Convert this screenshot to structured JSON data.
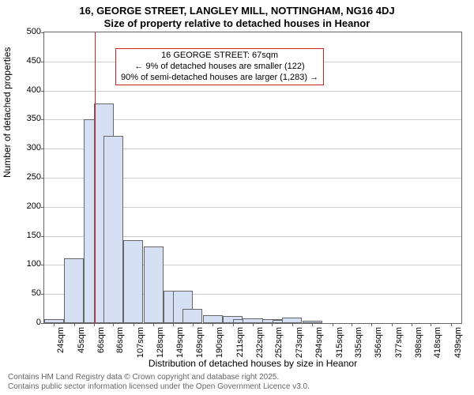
{
  "chart": {
    "type": "histogram",
    "title_main": "16, GEORGE STREET, LANGLEY MILL, NOTTINGHAM, NG16 4DJ",
    "title_sub": "Size of property relative to detached houses in Heanor",
    "title_fontsize": 13,
    "xlabel": "Distribution of detached houses by size in Heanor",
    "ylabel": "Number of detached properties",
    "label_fontsize": 12,
    "background_color": "#ffffff",
    "plot_border_color": "#666666",
    "grid_color": "#cccccc",
    "bar_fill": "#d5e0f5",
    "bar_border": "#666666",
    "marker_color": "#d22020",
    "ylim": [
      0,
      500
    ],
    "ytick_step": 50,
    "yticks": [
      0,
      50,
      100,
      150,
      200,
      250,
      300,
      350,
      400,
      450,
      500
    ],
    "xticks": [
      "24sqm",
      "45sqm",
      "66sqm",
      "86sqm",
      "107sqm",
      "128sqm",
      "149sqm",
      "169sqm",
      "190sqm",
      "211sqm",
      "232sqm",
      "252sqm",
      "273sqm",
      "294sqm",
      "315sqm",
      "335sqm",
      "356sqm",
      "377sqm",
      "398sqm",
      "418sqm",
      "439sqm"
    ],
    "xtick_step_sqm": 20.7,
    "xrange_sqm": [
      14,
      450
    ],
    "bars": [
      {
        "x_sqm": 24,
        "value": 7
      },
      {
        "x_sqm": 45,
        "value": 112
      },
      {
        "x_sqm": 66,
        "value": 350
      },
      {
        "x_sqm": 76,
        "value": 378
      },
      {
        "x_sqm": 86,
        "value": 322
      },
      {
        "x_sqm": 107,
        "value": 143
      },
      {
        "x_sqm": 128,
        "value": 132
      },
      {
        "x_sqm": 149,
        "value": 56
      },
      {
        "x_sqm": 159,
        "value": 56
      },
      {
        "x_sqm": 169,
        "value": 25
      },
      {
        "x_sqm": 190,
        "value": 14
      },
      {
        "x_sqm": 211,
        "value": 12
      },
      {
        "x_sqm": 222,
        "value": 7
      },
      {
        "x_sqm": 232,
        "value": 8
      },
      {
        "x_sqm": 252,
        "value": 7
      },
      {
        "x_sqm": 263,
        "value": 5
      },
      {
        "x_sqm": 273,
        "value": 10
      },
      {
        "x_sqm": 294,
        "value": 4
      },
      {
        "x_sqm": 315,
        "value": 0
      },
      {
        "x_sqm": 335,
        "value": 0
      },
      {
        "x_sqm": 356,
        "value": 0
      },
      {
        "x_sqm": 377,
        "value": 0
      },
      {
        "x_sqm": 398,
        "value": 0
      },
      {
        "x_sqm": 418,
        "value": 0
      },
      {
        "x_sqm": 439,
        "value": 0
      }
    ],
    "bar_width_sqm": 20.7,
    "marker_x_sqm": 67,
    "annotation": {
      "line1": "16 GEORGE STREET: 67sqm",
      "line2": "← 9% of detached houses are smaller (122)",
      "line3": "90% of semi-detached houses are larger (1,283) →",
      "border_color": "#d22020",
      "fontsize": 11
    },
    "footer": {
      "line1": "Contains HM Land Registry data © Crown copyright and database right 2025.",
      "line2": "Contains public sector information licensed under the Open Government Licence v3.0.",
      "color": "#666666",
      "fontsize": 10
    }
  }
}
